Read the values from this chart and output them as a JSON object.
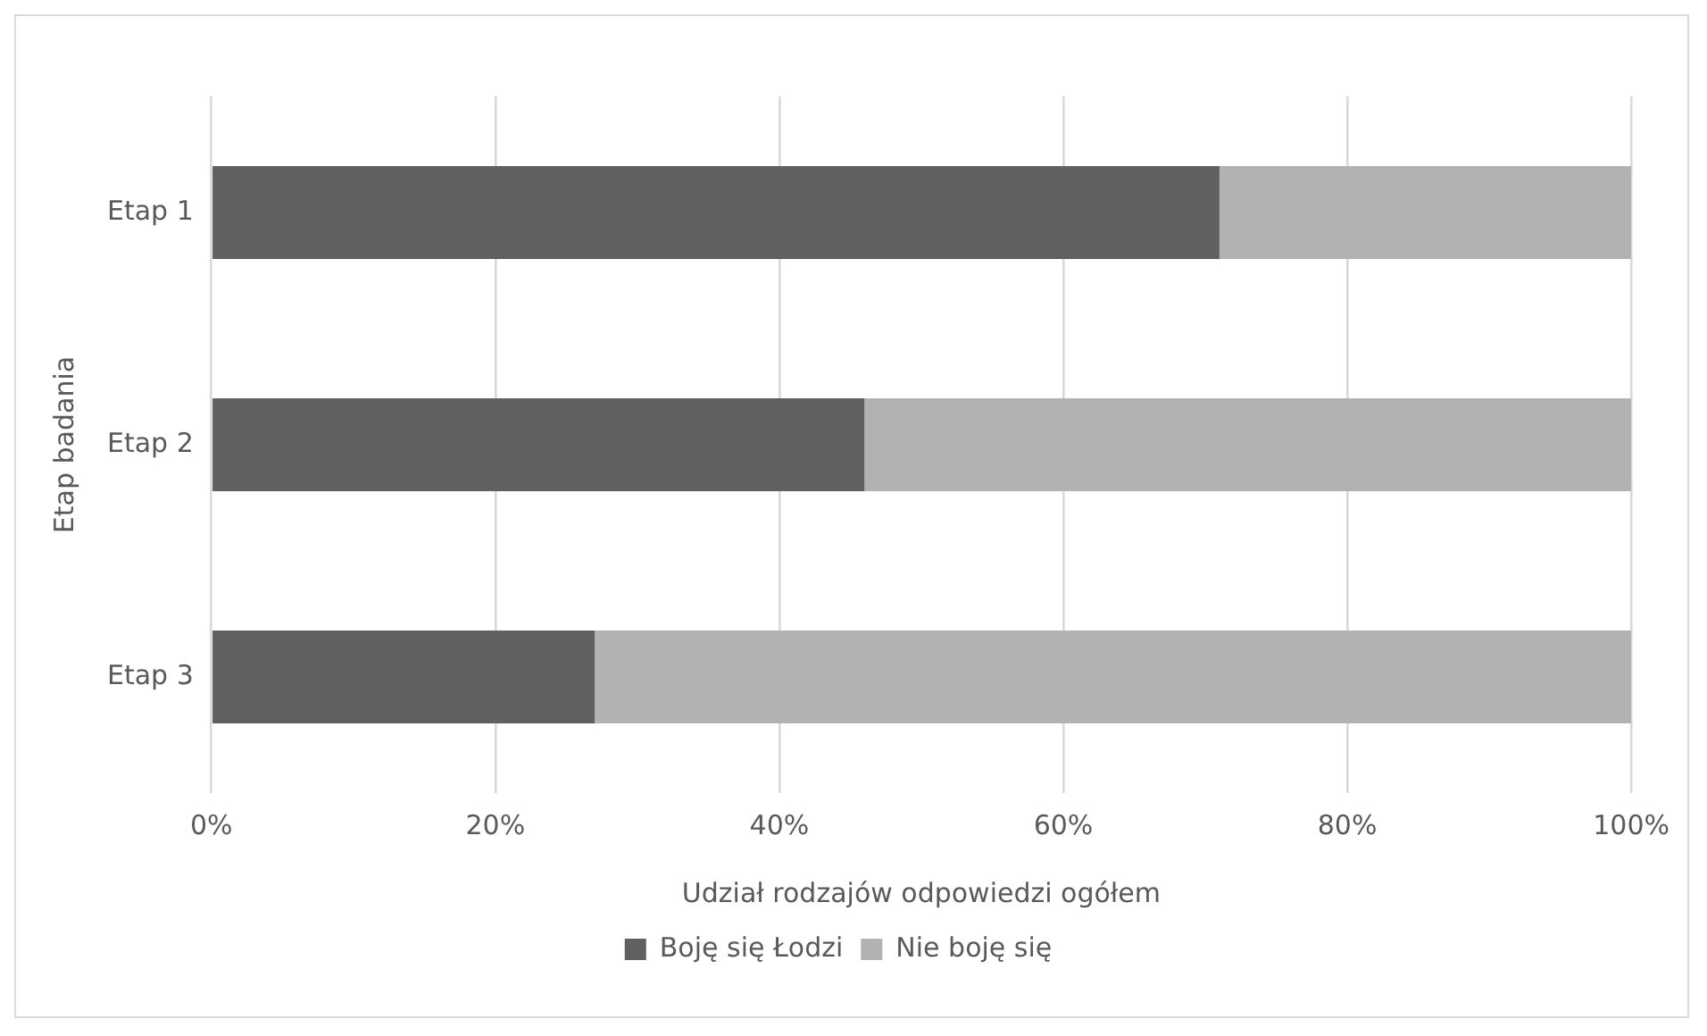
{
  "chart_data": {
    "type": "bar",
    "orientation": "horizontal",
    "stacked": true,
    "categories": [
      "Etap 1",
      "Etap 2",
      "Etap 3"
    ],
    "xlabel": "Udział rodzajów odpowiedzi ogółem",
    "ylabel": "Etap badania",
    "series": [
      {
        "name": "Boję się Łodzi",
        "color": "#606060",
        "values": [
          71,
          46,
          27
        ]
      },
      {
        "name": "Nie boję się",
        "color": "#b2b2b2",
        "values": [
          29,
          54,
          73
        ]
      }
    ],
    "xlim": [
      0,
      100
    ],
    "xticks": [
      {
        "value": 0,
        "label": "0%"
      },
      {
        "value": 20,
        "label": "20%"
      },
      {
        "value": 40,
        "label": "40%"
      },
      {
        "value": 60,
        "label": "60%"
      },
      {
        "value": 80,
        "label": "80%"
      },
      {
        "value": 100,
        "label": "100%"
      }
    ],
    "grid": "x",
    "legend": "bottom"
  }
}
